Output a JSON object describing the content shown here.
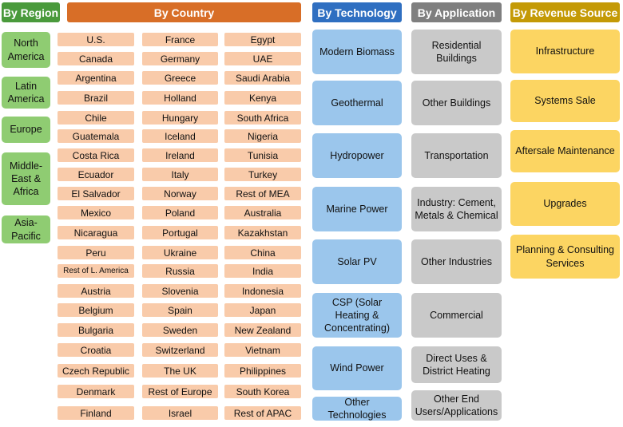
{
  "colors": {
    "region_header": "#4a9a3c",
    "region_box": "#8fcc72",
    "country_header": "#d86e27",
    "country_box": "#f9cbaa",
    "technology_header": "#2f6fc1",
    "technology_box": "#9bc6ec",
    "application_header": "#7f7f7f",
    "application_box": "#c9c9c9",
    "revenue_header": "#c49a06",
    "revenue_box": "#fcd562"
  },
  "region": {
    "title": "By Region",
    "items": [
      "North America",
      "Latin America",
      "Europe",
      "Middle-East & Africa",
      "Asia-Pacific"
    ]
  },
  "country": {
    "title": "By Country",
    "col1": [
      "U.S.",
      "Canada",
      "Argentina",
      "Brazil",
      "Chile",
      "Guatemala",
      "Costa Rica",
      "Ecuador",
      "El Salvador",
      "Mexico",
      "Nicaragua",
      "Peru",
      "Rest of L. America",
      "Austria",
      "Belgium",
      "Bulgaria",
      "Croatia",
      "Czech Republic",
      "Denmark",
      "Finland"
    ],
    "col2": [
      "France",
      "Germany",
      "Greece",
      "Holland",
      "Hungary",
      "Iceland",
      "Ireland",
      "Italy",
      "Norway",
      "Poland",
      "Portugal",
      "Ukraine",
      "Russia",
      "Slovenia",
      "Spain",
      "Sweden",
      "Switzerland",
      "The UK",
      "Rest of Europe",
      "Israel"
    ],
    "col3": [
      "Egypt",
      "UAE",
      "Saudi Arabia",
      "Kenya",
      "South Africa",
      "Nigeria",
      "Tunisia",
      "Turkey",
      "Rest of MEA",
      "Australia",
      "Kazakhstan",
      "China",
      "India",
      "Indonesia",
      "Japan",
      "New Zealand",
      "Vietnam",
      "Philippines",
      "South Korea",
      "Rest of APAC"
    ]
  },
  "technology": {
    "title": "By Technology",
    "items": [
      "Modern Biomass",
      "Geothermal",
      "Hydropower",
      "Marine Power",
      "Solar PV",
      "CSP (Solar Heating & Concentrating)",
      "Wind Power",
      "Other Technologies"
    ]
  },
  "application": {
    "title": "By Application",
    "items": [
      "Residential Buildings",
      "Other Buildings",
      "Transportation",
      "Industry: Cement, Metals & Chemical",
      "Other Industries",
      "Commercial",
      "Direct Uses & District Heating",
      "Other End Users/Applications"
    ]
  },
  "revenue": {
    "title": "By  Revenue Source",
    "items": [
      "Infrastructure",
      "Systems Sale",
      "Aftersale Maintenance",
      "Upgrades",
      "Planning  & Consulting Services"
    ]
  }
}
